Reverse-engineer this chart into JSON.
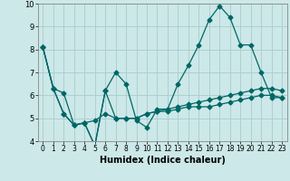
{
  "xlabel": "Humidex (Indice chaleur)",
  "bg_color": "#cce8e8",
  "grid_color": "#aacccc",
  "line_color": "#006666",
  "xlim": [
    -0.5,
    23.5
  ],
  "ylim": [
    4,
    10
  ],
  "yticks": [
    4,
    5,
    6,
    7,
    8,
    9,
    10
  ],
  "xticks": [
    0,
    1,
    2,
    3,
    4,
    5,
    6,
    7,
    8,
    9,
    10,
    11,
    12,
    13,
    14,
    15,
    16,
    17,
    18,
    19,
    20,
    21,
    22,
    23
  ],
  "lines": [
    {
      "x": [
        0,
        1,
        2,
        3,
        4,
        5,
        6,
        7,
        8,
        9,
        10,
        11,
        12,
        13,
        14,
        15,
        16,
        17,
        18,
        19,
        20,
        21,
        22,
        23
      ],
      "y": [
        8.1,
        6.3,
        6.1,
        4.7,
        4.8,
        3.8,
        6.2,
        7.0,
        6.5,
        4.9,
        4.6,
        5.4,
        5.4,
        6.5,
        7.3,
        8.2,
        9.3,
        9.9,
        9.4,
        8.2,
        8.2,
        7.0,
        5.9,
        5.9
      ]
    },
    {
      "x": [
        0,
        1,
        2,
        3,
        4,
        5,
        6,
        7,
        8,
        9,
        10,
        11,
        12,
        13,
        14,
        15,
        16,
        17,
        18,
        19,
        20,
        21,
        22,
        23
      ],
      "y": [
        8.1,
        6.3,
        5.2,
        4.7,
        4.8,
        4.9,
        5.2,
        5.0,
        5.0,
        5.0,
        5.2,
        5.3,
        5.3,
        5.4,
        5.5,
        5.5,
        5.5,
        5.6,
        5.7,
        5.8,
        5.9,
        6.0,
        6.0,
        5.9
      ]
    },
    {
      "x": [
        0,
        1,
        2,
        3,
        4,
        5,
        6,
        7,
        8,
        9,
        10,
        11,
        12,
        13,
        14,
        15,
        16,
        17,
        18,
        19,
        20,
        21,
        22,
        23
      ],
      "y": [
        8.1,
        6.3,
        5.2,
        4.7,
        4.8,
        3.8,
        6.2,
        5.0,
        5.0,
        5.0,
        5.2,
        5.3,
        5.4,
        5.5,
        5.6,
        5.7,
        5.8,
        5.9,
        6.0,
        6.1,
        6.2,
        6.3,
        6.3,
        6.2
      ]
    }
  ]
}
